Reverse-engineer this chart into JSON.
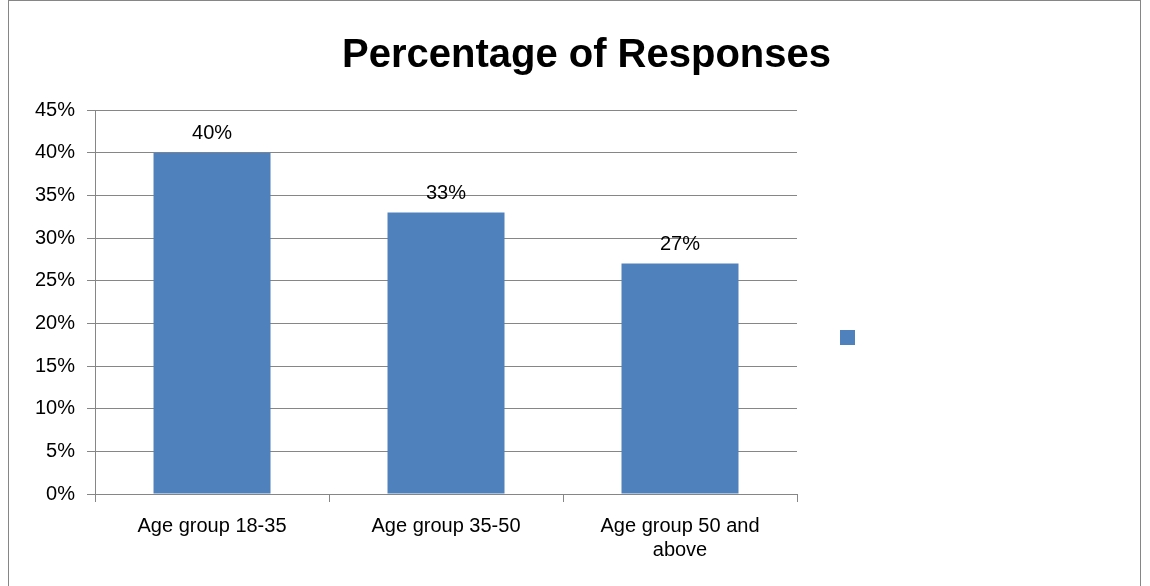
{
  "chart_data": {
    "type": "bar",
    "title": "Percentage of Responses",
    "categories": [
      "Age group 18-35",
      "Age group 35-50",
      "Age group 50 and above"
    ],
    "series": [
      {
        "color": "#4f81bd",
        "values": [
          40,
          33,
          27
        ],
        "value_labels": [
          "40%",
          "33%",
          "27%"
        ]
      }
    ],
    "ylim": [
      0,
      45
    ],
    "yticks": [
      {
        "value": 0,
        "label": "0%"
      },
      {
        "value": 5,
        "label": "5%"
      },
      {
        "value": 10,
        "label": "10%"
      },
      {
        "value": 15,
        "label": "15%"
      },
      {
        "value": 20,
        "label": "20%"
      },
      {
        "value": 25,
        "label": "25%"
      },
      {
        "value": 30,
        "label": "30%"
      },
      {
        "value": 35,
        "label": "35%"
      },
      {
        "value": 40,
        "label": "40%"
      },
      {
        "value": 45,
        "label": "45%"
      }
    ],
    "grid": "y"
  }
}
